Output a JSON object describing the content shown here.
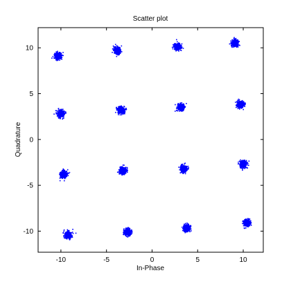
{
  "chart_data": {
    "type": "scatter",
    "title": "Scatter plot",
    "xlabel": "In-Phase",
    "ylabel": "Quadrature",
    "xlim": [
      -12.5,
      12.2
    ],
    "ylim": [
      -12.3,
      12.2
    ],
    "xticks": [
      -10,
      -5,
      0,
      5,
      10
    ],
    "yticks": [
      -10,
      -5,
      0,
      5,
      10
    ],
    "xtick_labels": [
      "-10",
      "-5",
      "0",
      "5",
      "10"
    ],
    "ytick_labels": [
      "-10",
      "-5",
      "0",
      "5",
      "10"
    ],
    "grid": false,
    "series": [
      {
        "color": "#0000ff",
        "clusters": [
          {
            "x": -10.3,
            "y": 9.1
          },
          {
            "x": -3.8,
            "y": 9.7
          },
          {
            "x": 2.8,
            "y": 10.1
          },
          {
            "x": 9.1,
            "y": 10.5
          },
          {
            "x": -10.0,
            "y": 2.8
          },
          {
            "x": -3.4,
            "y": 3.2
          },
          {
            "x": 3.2,
            "y": 3.5
          },
          {
            "x": 9.7,
            "y": 3.8
          },
          {
            "x": -9.7,
            "y": -3.8
          },
          {
            "x": -3.2,
            "y": -3.4
          },
          {
            "x": 3.5,
            "y": -3.2
          },
          {
            "x": 10.0,
            "y": -2.7
          },
          {
            "x": -9.2,
            "y": -10.4
          },
          {
            "x": -2.7,
            "y": -10.1
          },
          {
            "x": 3.8,
            "y": -9.7
          },
          {
            "x": 10.4,
            "y": -9.1
          }
        ]
      }
    ]
  }
}
